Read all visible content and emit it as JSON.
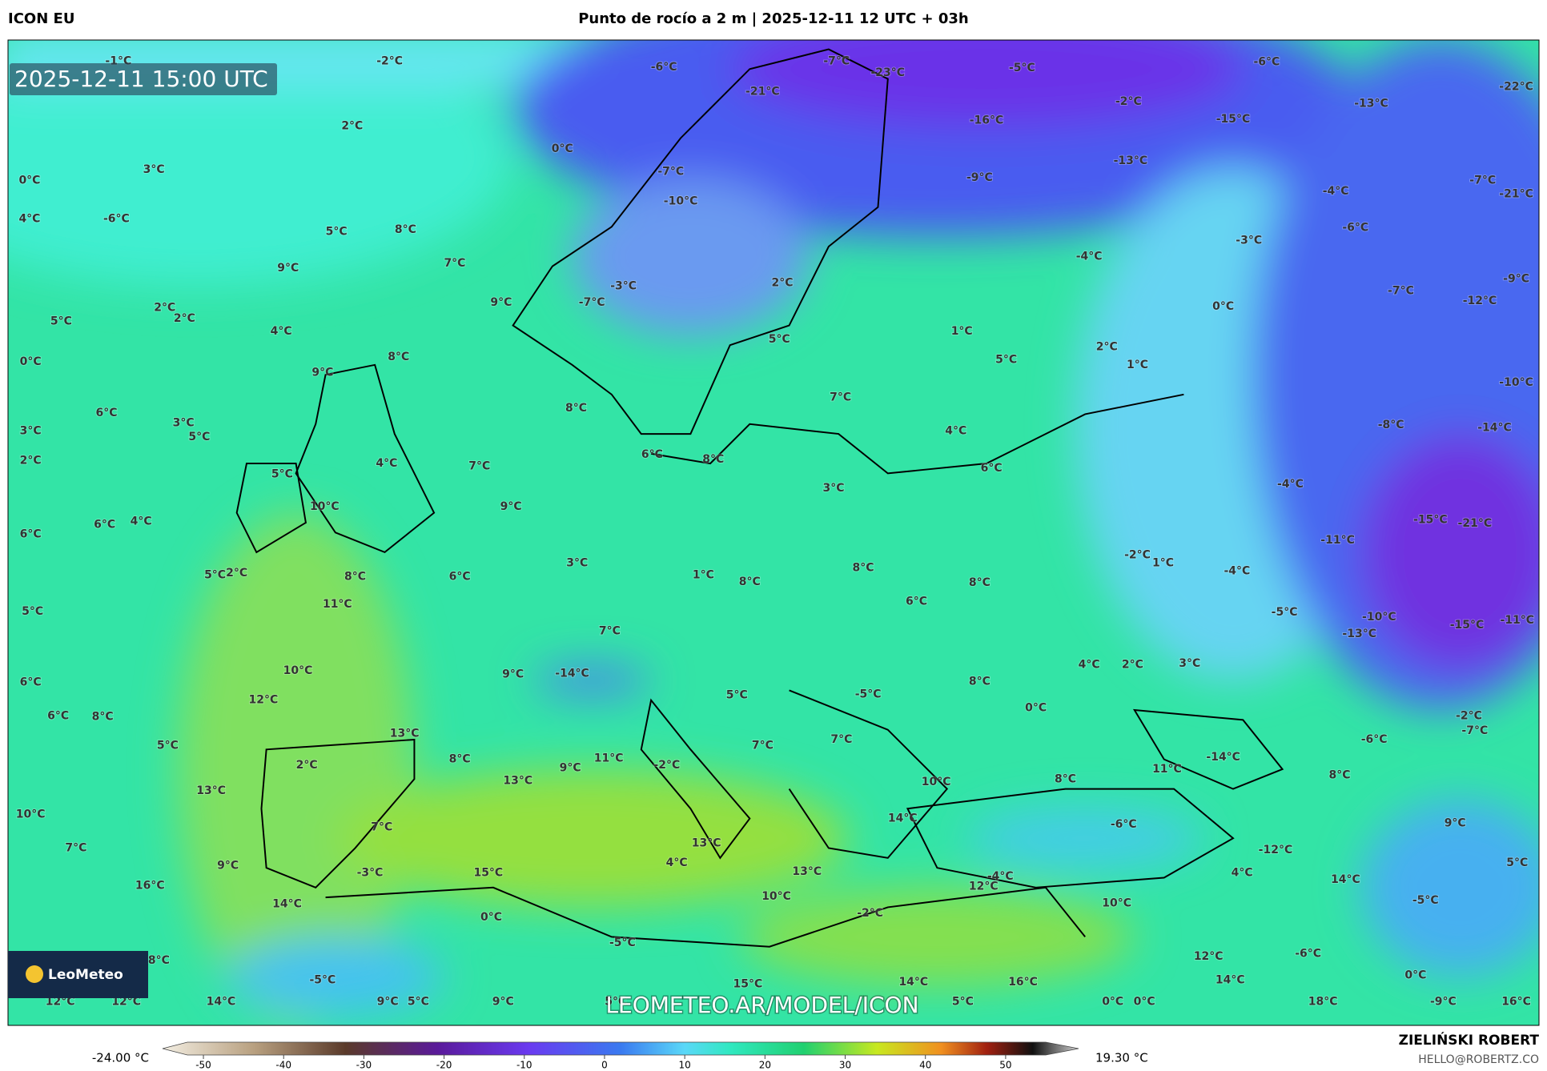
{
  "header": {
    "model": "ICON EU",
    "title": "Punto de rocío a 2 m | 2025-12-11 12 UTC + 03h"
  },
  "map": {
    "valid_time": "2025-12-11 15:00 UTC",
    "watermark": "LEOMETEO.AR/MODEL/ICON",
    "logo": "LeoMeteo",
    "labels": [
      "-1°C",
      "-2°C",
      "-6°C",
      "-7°C",
      "-23°C",
      "-5°C",
      "-6°C",
      "-22°C",
      "-21°C",
      "-2°C",
      "-13°C",
      "-16°C",
      "-15°C",
      "2°C",
      "0°C",
      "-13°C",
      "-9°C",
      "-7°C",
      "-10°C",
      "-4°C",
      "-7°C",
      "-21°C",
      "0°C",
      "3°C",
      "-6°C",
      "4°C",
      "5°C",
      "8°C",
      "-6°C",
      "-3°C",
      "-4°C",
      "7°C",
      "9°C",
      "2°C",
      "-3°C",
      "-7°C",
      "-9°C",
      "9°C",
      "-7°C",
      "2°C",
      "2°C",
      "0°C",
      "-12°C",
      "5°C",
      "4°C",
      "5°C",
      "1°C",
      "2°C",
      "8°C",
      "0°C",
      "5°C",
      "1°C",
      "9°C",
      "-10°C",
      "7°C",
      "8°C",
      "6°C",
      "3°C",
      "5°C",
      "-8°C",
      "-14°C",
      "3°C",
      "4°C",
      "2°C",
      "8°C",
      "6°C",
      "4°C",
      "7°C",
      "6°C",
      "-4°C",
      "3°C",
      "5°C",
      "10°C",
      "9°C",
      "-15°C",
      "-21°C",
      "6°C",
      "4°C",
      "6°C",
      "-11°C",
      "-2°C",
      "1°C",
      "3°C",
      "8°C",
      "-4°C",
      "5°C",
      "2°C",
      "8°C",
      "6°C",
      "1°C",
      "8°C",
      "8°C",
      "11°C",
      "6°C",
      "5°C",
      "-5°C",
      "-10°C",
      "-15°C",
      "-11°C",
      "-13°C",
      "7°C",
      "3°C",
      "4°C",
      "2°C",
      "10°C",
      "9°C",
      "-14°C",
      "6°C",
      "8°C",
      "5°C",
      "-5°C",
      "12°C",
      "0°C",
      "6°C",
      "8°C",
      "-2°C",
      "-7°C",
      "13°C",
      "7°C",
      "7°C",
      "-6°C",
      "5°C",
      "2°C",
      "8°C",
      "9°C",
      "11°C",
      "-2°C",
      "11°C",
      "-14°C",
      "8°C",
      "13°C",
      "10°C",
      "8°C",
      "13°C",
      "10°C",
      "14°C",
      "-6°C",
      "7°C",
      "9°C",
      "13°C",
      "7°C",
      "-12°C",
      "4°C",
      "5°C",
      "9°C",
      "-3°C",
      "15°C",
      "13°C",
      "4°C",
      "-4°C",
      "14°C",
      "16°C",
      "12°C",
      "10°C",
      "-5°C",
      "14°C",
      "10°C",
      "0°C",
      "-2°C",
      "-5°C",
      "8°C",
      "12°C",
      "-6°C",
      "0°C",
      "-5°C",
      "15°C",
      "14°C",
      "16°C",
      "14°C",
      "12°C",
      "12°C",
      "14°C",
      "9°C",
      "5°C",
      "9°C",
      "5°C",
      "5°C",
      "0°C",
      "0°C",
      "18°C",
      "-9°C",
      "16°C"
    ]
  },
  "colorbar": {
    "min_label": "-24.00 °C",
    "max_label": "19.30 °C",
    "lim": [
      -52,
      55
    ],
    "ticks": [
      -50,
      -40,
      -30,
      -20,
      -10,
      0,
      10,
      20,
      30,
      40,
      50
    ]
  },
  "credits": {
    "author": "ZIELIŃSKI ROBERT",
    "contact": "HELLO@ROBERTZ.CO"
  }
}
